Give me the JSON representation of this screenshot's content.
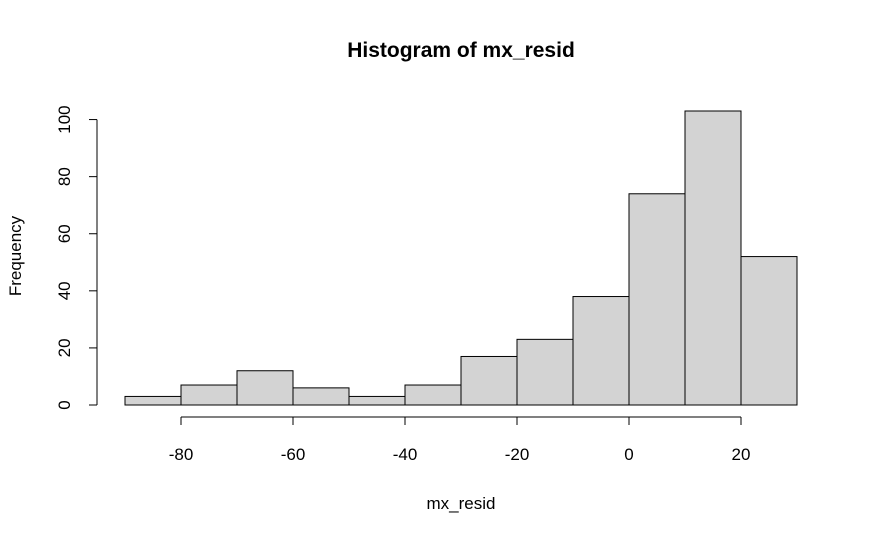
{
  "chart_data": {
    "type": "bar",
    "title": "Histogram of mx_resid",
    "xlabel": "mx_resid",
    "ylabel": "Frequency",
    "bins": [
      {
        "start": -90,
        "end": -80,
        "count": 3
      },
      {
        "start": -80,
        "end": -70,
        "count": 7
      },
      {
        "start": -70,
        "end": -60,
        "count": 12
      },
      {
        "start": -60,
        "end": -50,
        "count": 6
      },
      {
        "start": -50,
        "end": -40,
        "count": 3
      },
      {
        "start": -40,
        "end": -30,
        "count": 7
      },
      {
        "start": -30,
        "end": -20,
        "count": 17
      },
      {
        "start": -20,
        "end": -10,
        "count": 23
      },
      {
        "start": -10,
        "end": 0,
        "count": 38
      },
      {
        "start": 0,
        "end": 10,
        "count": 74
      },
      {
        "start": 10,
        "end": 20,
        "count": 103
      },
      {
        "start": 20,
        "end": 30,
        "count": 52
      }
    ],
    "x_ticks": [
      -80,
      -60,
      -40,
      -20,
      0,
      20
    ],
    "x_tick_labels": [
      "-80",
      "-60",
      "-40",
      "-20",
      "0",
      "20"
    ],
    "y_ticks": [
      0,
      20,
      40,
      60,
      80,
      100
    ],
    "y_tick_labels": [
      "0",
      "20",
      "40",
      "60",
      "80",
      "100"
    ],
    "xlim": [
      -90,
      30
    ],
    "ylim": [
      0,
      103
    ],
    "grid": false,
    "legend": "none",
    "bar_color": "#d3d3d3",
    "border_color": "#000000"
  }
}
